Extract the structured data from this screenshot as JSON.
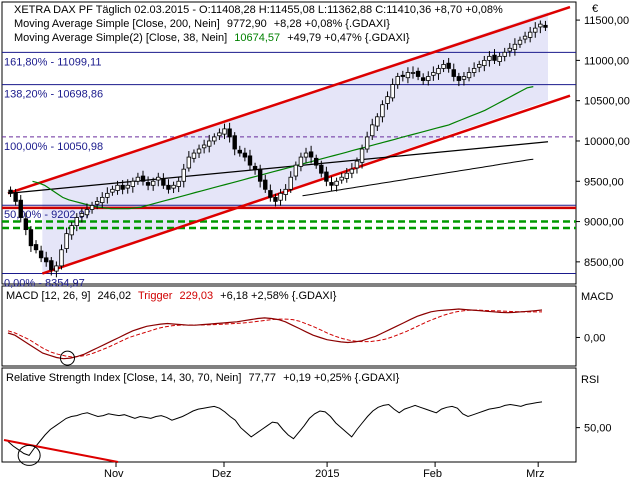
{
  "chart_data": {
    "type": "candlestick",
    "header": {
      "line1": "XETRA DAX PF Täglich  02.03.2015 - O:11408,28 H:11455,08 L:11362,88 C:11410,36 +8,70 +0,08%",
      "line2_label": "Moving Average Simple [Close, 200, Nein]",
      "line2_value": "9772,90",
      "line2_change": "+8,28 +0,08% {.GDAXI}",
      "line3_label": "Moving Average Simple(2) [Close, 38, Nein]",
      "line3_value": "10674,57",
      "line3_change": "+49,79 +0,47% {.GDAXI}"
    },
    "currency_symbol": "€",
    "price_axis": {
      "ylim": [
        8250,
        11650
      ],
      "ticks": [
        8500,
        9000,
        9500,
        10000,
        10500,
        11000,
        11500
      ],
      "tick_labels": [
        "8500,00",
        "9000,00",
        "9500,00",
        "10000,00",
        "10500,00",
        "11000,00",
        "11500,00"
      ]
    },
    "fib_levels": [
      {
        "label": "161,80% - 11099,11",
        "value": 11099.11
      },
      {
        "label": "138,20% - 10698,86",
        "value": 10698.86
      },
      {
        "label": "100,00% - 10050,98",
        "value": 10050.98
      },
      {
        "label": "50,00% - 9202,97",
        "value": 9202.97
      },
      {
        "label": "0,00% - 8354,97",
        "value": 8354.97
      }
    ],
    "x_axis": {
      "labels": [
        {
          "text": "Nov",
          "index": 22
        },
        {
          "text": "Dez",
          "index": 44
        },
        {
          "text": "2015",
          "index": 65
        },
        {
          "text": "Feb",
          "index": 87
        },
        {
          "text": "Mrz",
          "index": 108
        }
      ]
    },
    "candles_close": [
      9350,
      9250,
      9050,
      8900,
      8700,
      8650,
      8550,
      8500,
      8400,
      8450,
      8650,
      8850,
      8950,
      9050,
      9100,
      9150,
      9200,
      9250,
      9300,
      9350,
      9400,
      9450,
      9400,
      9450,
      9500,
      9550,
      9500,
      9450,
      9500,
      9550,
      9450,
      9400,
      9450,
      9500,
      9650,
      9800,
      9850,
      9900,
      9950,
      10000,
      10050,
      10100,
      10150,
      10050,
      9900,
      9850,
      9800,
      9700,
      9650,
      9500,
      9400,
      9300,
      9250,
      9350,
      9400,
      9550,
      9700,
      9800,
      9850,
      9800,
      9700,
      9600,
      9500,
      9450,
      9500,
      9550,
      9600,
      9650,
      9750,
      9900,
      10050,
      10200,
      10300,
      10450,
      10550,
      10700,
      10800,
      10800,
      10850,
      10850,
      10800,
      10750,
      10800,
      10850,
      10900,
      10950,
      10900,
      10800,
      10750,
      10800,
      10850,
      10900,
      10950,
      11000,
      11050,
      11000,
      11050,
      11100,
      11150,
      11200,
      11250,
      11300,
      11350,
      11400,
      11450,
      11410
    ],
    "ma200": [
      9320,
      9325,
      9330,
      9335,
      9340,
      9345,
      9350,
      9355,
      9360,
      9365,
      9370,
      9375,
      9380,
      9385,
      9390,
      9395,
      9400,
      9405,
      9410,
      9415,
      9420,
      9425,
      9430,
      9435,
      9440,
      9445,
      9450,
      9455,
      9460,
      9465,
      9470,
      9475,
      9480,
      9485,
      9490,
      9495,
      9500,
      9505,
      9510,
      9515,
      9520,
      9525,
      9530,
      9535,
      9540,
      9545,
      9550,
      9555,
      9560,
      9565,
      9570,
      9575,
      9580,
      9585,
      9590,
      9595,
      9600,
      9605,
      9610,
      9615,
      9620,
      9625,
      9630,
      9635,
      9640,
      9645,
      9650,
      9655,
      9660,
      9665,
      9670,
      9675,
      9680,
      9685,
      9690,
      9695,
      9700,
      9705,
      9710,
      9715,
      9720,
      9725,
      9730,
      9735,
      9740,
      9745,
      9750,
      9755,
      9760,
      9765,
      9770,
      9772.9
    ],
    "ma38": [
      9500,
      9480,
      9450,
      9400,
      9350,
      9300,
      9270,
      9250,
      9230,
      9210,
      9190,
      9180,
      9170,
      9160,
      9160,
      9160,
      9160,
      9170,
      9180,
      9200,
      9220,
      9240,
      9260,
      9280,
      9300,
      9320,
      9340,
      9360,
      9380,
      9400,
      9420,
      9440,
      9460,
      9480,
      9500,
      9520,
      9540,
      9560,
      9580,
      9600,
      9620,
      9640,
      9660,
      9680,
      9700,
      9720,
      9740,
      9760,
      9780,
      9800,
      9820,
      9840,
      9860,
      9880,
      9900,
      9920,
      9940,
      9960,
      9980,
      10000,
      10020,
      10040,
      10060,
      10080,
      10100,
      10120,
      10140,
      10160,
      10180,
      10200,
      10230,
      10260,
      10290,
      10320,
      10350,
      10380,
      10420,
      10460,
      10500,
      10540,
      10580,
      10620,
      10660,
      10674.57
    ],
    "channel": {
      "upper": [
        [
          0,
          9350
        ],
        [
          110,
          11600
        ]
      ],
      "lower": [
        [
          7,
          8354.97
        ],
        [
          110,
          10500
        ]
      ],
      "middle": [
        [
          0,
          9350
        ],
        [
          110,
          9990
        ]
      ]
    },
    "support_lines": [
      9170,
      9000,
      8920
    ],
    "macd": {
      "header_label": "MACD [12, 26, 9]",
      "header_value": "246,02",
      "trigger_label": "Trigger",
      "trigger_value": "229,03",
      "header_change": "+6,18 +2,58% {.GDAXI}",
      "axis_title": "MACD",
      "tick_label": "0,00",
      "ylim": [
        -220,
        300
      ],
      "macd_line": [
        40,
        20,
        -20,
        -60,
        -100,
        -140,
        -160,
        -180,
        -190,
        -185,
        -170,
        -150,
        -120,
        -90,
        -60,
        -30,
        0,
        30,
        60,
        80,
        100,
        110,
        120,
        125,
        120,
        115,
        110,
        110,
        115,
        120,
        125,
        130,
        135,
        140,
        150,
        160,
        170,
        175,
        170,
        160,
        140,
        110,
        80,
        50,
        20,
        0,
        -20,
        -30,
        -40,
        -45,
        -40,
        -30,
        -10,
        10,
        40,
        70,
        100,
        130,
        160,
        190,
        210,
        230,
        240,
        245,
        250,
        255,
        250,
        245,
        240,
        235,
        230,
        225,
        222,
        225,
        230,
        235,
        240,
        246.02
      ],
      "trigger_line": [
        60,
        40,
        10,
        -20,
        -60,
        -100,
        -130,
        -150,
        -165,
        -175,
        -170,
        -160,
        -140,
        -115,
        -90,
        -60,
        -30,
        0,
        20,
        40,
        60,
        80,
        95,
        105,
        110,
        112,
        112,
        112,
        113,
        115,
        118,
        122,
        126,
        130,
        136,
        144,
        152,
        160,
        165,
        165,
        160,
        145,
        120,
        95,
        65,
        35,
        10,
        -10,
        -25,
        -35,
        -38,
        -36,
        -28,
        -15,
        5,
        30,
        55,
        85,
        115,
        145,
        170,
        195,
        215,
        230,
        240,
        245,
        245,
        242,
        240,
        238,
        235,
        232,
        230,
        229,
        229,
        229.03
      ]
    },
    "rsi": {
      "header_label": "Relative Strength Index [Close, 14, 30, 70, Nein]",
      "header_value": "77,77",
      "header_change": "+0,19 +0,25% {.GDAXI}",
      "axis_title": "RSI",
      "tick_label": "50,00",
      "ylim": [
        15,
        95
      ],
      "values": [
        35,
        30,
        26,
        22,
        20,
        28,
        35,
        42,
        48,
        52,
        56,
        60,
        62,
        63,
        65,
        66,
        64,
        62,
        63,
        65,
        64,
        63,
        64,
        62,
        60,
        62,
        61,
        60,
        62,
        63,
        61,
        58,
        60,
        62,
        65,
        68,
        70,
        71,
        72,
        73,
        71,
        67,
        62,
        58,
        50,
        45,
        40,
        44,
        48,
        52,
        56,
        55,
        48,
        42,
        38,
        45,
        52,
        60,
        65,
        68,
        67,
        62,
        55,
        50,
        45,
        40,
        48,
        55,
        62,
        68,
        72,
        74,
        75,
        70,
        66,
        70,
        72,
        74,
        72,
        70,
        68,
        66,
        70,
        72,
        73,
        71,
        65,
        62,
        64,
        66,
        68,
        70,
        71,
        72,
        74,
        75,
        74,
        73,
        75,
        76,
        77,
        77.77
      ]
    }
  }
}
